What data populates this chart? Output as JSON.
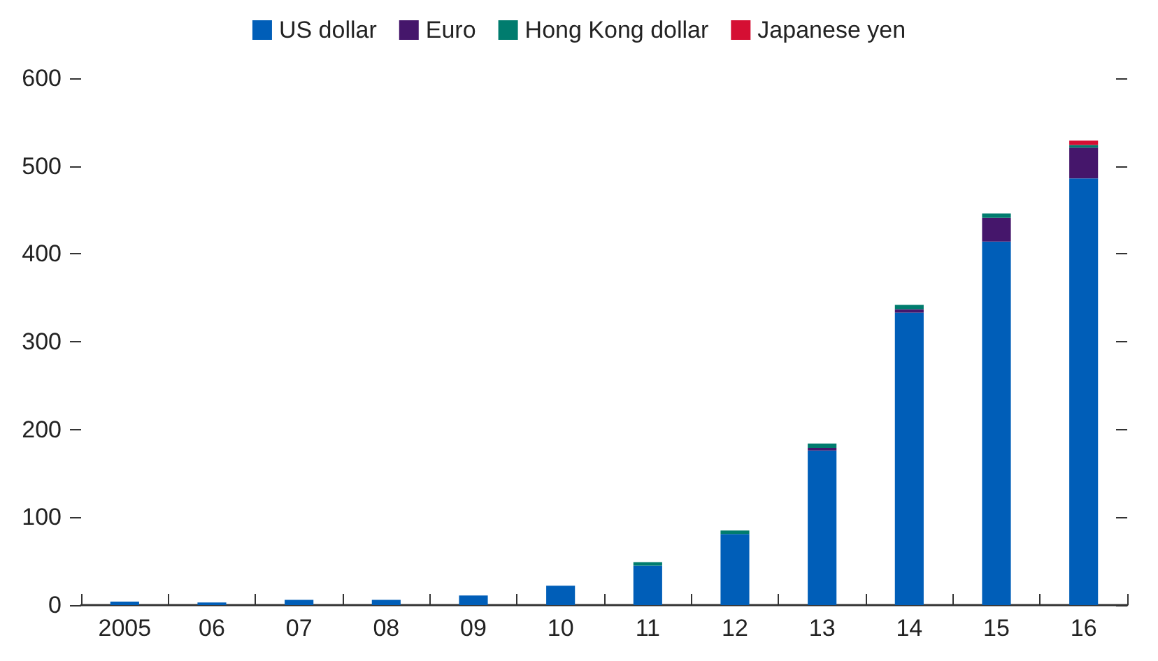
{
  "chart_data": {
    "type": "bar",
    "stacked": true,
    "categories": [
      "2005",
      "06",
      "07",
      "08",
      "09",
      "10",
      "11",
      "12",
      "13",
      "14",
      "15",
      "16"
    ],
    "series": [
      {
        "name": "US dollar",
        "color": "#005eb8",
        "values": [
          4,
          3,
          6,
          6,
          11,
          22,
          45,
          81,
          176,
          333,
          414,
          486
        ]
      },
      {
        "name": "Euro",
        "color": "#45166b",
        "values": [
          0,
          0,
          0,
          0,
          0,
          0,
          0,
          0,
          3,
          4,
          27,
          35
        ]
      },
      {
        "name": "Hong Kong dollar",
        "color": "#007c6e",
        "values": [
          0,
          0,
          0,
          0,
          0,
          0,
          4,
          4,
          5,
          5,
          5,
          3
        ]
      },
      {
        "name": "Japanese yen",
        "color": "#d50f33",
        "values": [
          0,
          0,
          0,
          0,
          0,
          0,
          0,
          0,
          0,
          0,
          0,
          5
        ]
      }
    ],
    "ylim": [
      0,
      600
    ],
    "yticks": [
      0,
      100,
      200,
      300,
      400,
      500,
      600
    ],
    "grid": false,
    "legend": "top"
  }
}
